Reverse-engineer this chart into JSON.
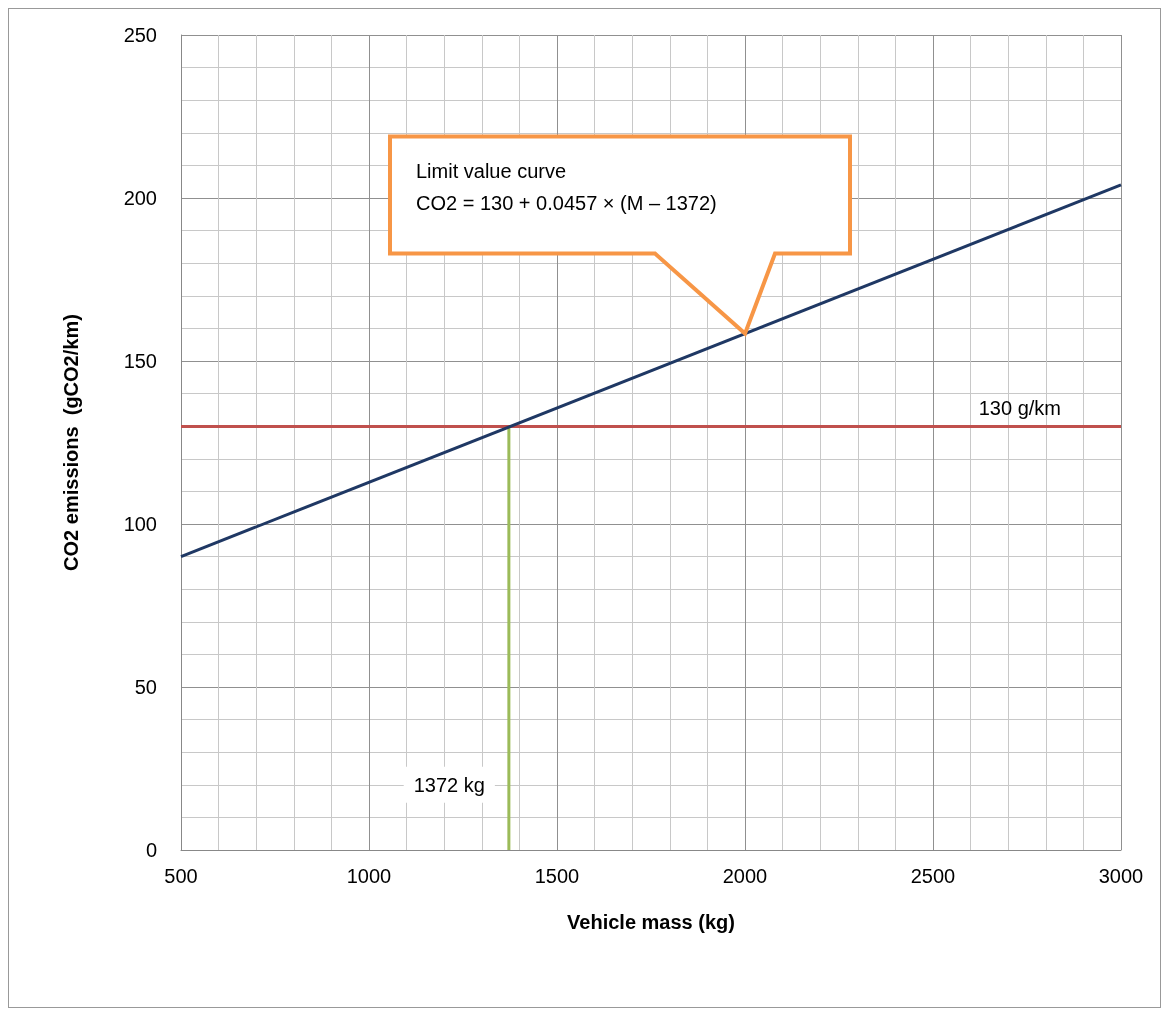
{
  "chart_data": {
    "type": "line",
    "xlabel": "Vehicle mass (kg)",
    "ylabel": "CO2 emissions  (gCO2/km)",
    "xlim": [
      500,
      3000
    ],
    "xticks": [
      500,
      1000,
      1500,
      2000,
      2500,
      3000
    ],
    "ylim": [
      0,
      250
    ],
    "yticks": [
      0,
      50,
      100,
      150,
      200,
      250
    ],
    "series": [
      {
        "color": "#1f3864",
        "x": [
          500,
          3000
        ],
        "values": [
          90,
          204
        ]
      },
      {
        "color": "#9bbb59",
        "x": [
          1372,
          1372
        ],
        "values": [
          0,
          130
        ]
      }
    ],
    "ref_lines": [
      {
        "axis": "y",
        "value": 130,
        "label": "130 g/km",
        "color": "#c0504d"
      }
    ],
    "annotations": [
      "Limit value curve\nCO2 = 130 + 0.0457 × (M – 1372)",
      {
        "text": "1372 kg",
        "x": 1372,
        "y": 20
      }
    ],
    "grid": true,
    "marker": "none",
    "line_style": "solid"
  }
}
